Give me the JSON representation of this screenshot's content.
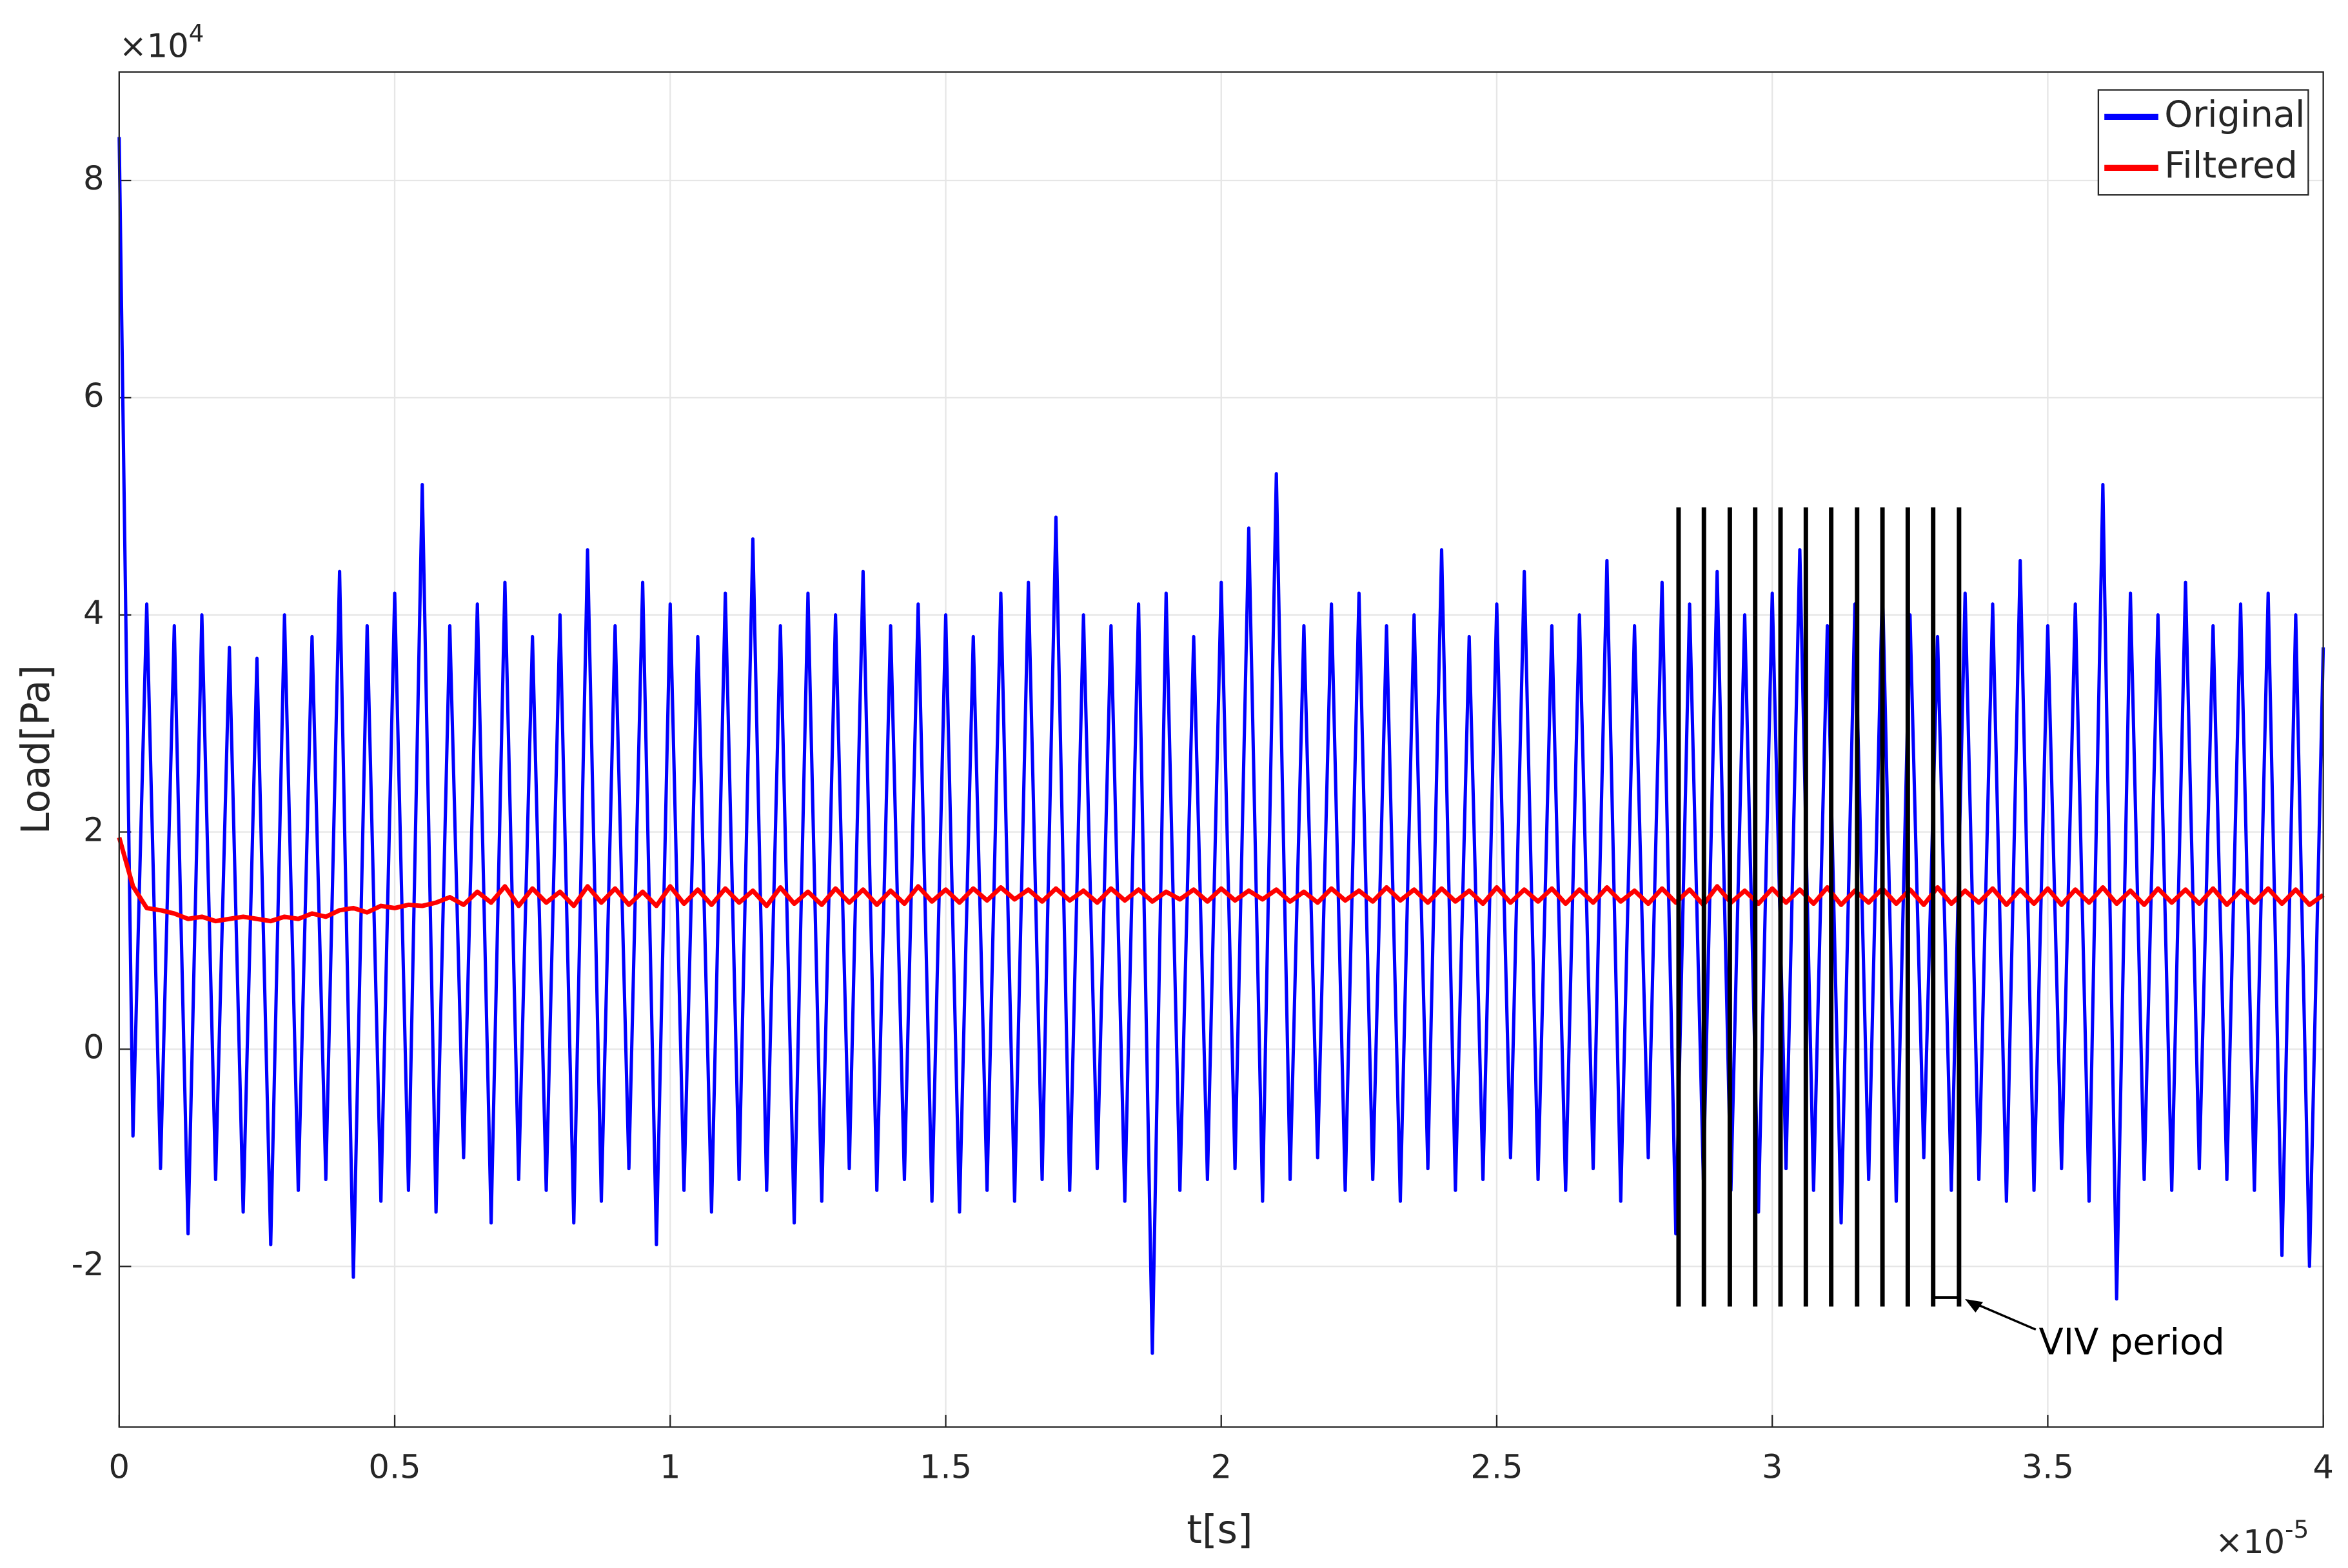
{
  "chart_data": {
    "type": "line",
    "xlabel": "t[s]",
    "ylabel": "Load[Pa]",
    "x_multiplier": "×10",
    "x_exponent": "-5",
    "y_multiplier": "×10",
    "y_exponent": "4",
    "xlim": [
      0,
      4
    ],
    "ylim": [
      -3.48,
      9
    ],
    "xticks": [
      0,
      0.5,
      1,
      1.5,
      2,
      2.5,
      3,
      3.5,
      4
    ],
    "yticks": [
      -2,
      0,
      2,
      4,
      6,
      8
    ],
    "grid": true,
    "legend": "upper right",
    "x": [
      0,
      0.025,
      0.05,
      0.075,
      0.1,
      0.125,
      0.15,
      0.175,
      0.2,
      0.225,
      0.25,
      0.275,
      0.3,
      0.325,
      0.35,
      0.375,
      0.4,
      0.425,
      0.45,
      0.475,
      0.5,
      0.525,
      0.55,
      0.575,
      0.6,
      0.625,
      0.65,
      0.675,
      0.7,
      0.725,
      0.75,
      0.775,
      0.8,
      0.825,
      0.85,
      0.875,
      0.9,
      0.925,
      0.95,
      0.975,
      1,
      1.025,
      1.05,
      1.075,
      1.1,
      1.125,
      1.15,
      1.175,
      1.2,
      1.225,
      1.25,
      1.275,
      1.3,
      1.325,
      1.35,
      1.375,
      1.4,
      1.425,
      1.45,
      1.475,
      1.5,
      1.525,
      1.55,
      1.575,
      1.6,
      1.625,
      1.65,
      1.675,
      1.7,
      1.725,
      1.75,
      1.775,
      1.8,
      1.825,
      1.85,
      1.875,
      1.9,
      1.925,
      1.95,
      1.975,
      2,
      2.025,
      2.05,
      2.075,
      2.1,
      2.125,
      2.15,
      2.175,
      2.2,
      2.225,
      2.25,
      2.275,
      2.3,
      2.325,
      2.35,
      2.375,
      2.4,
      2.425,
      2.45,
      2.475,
      2.5,
      2.525,
      2.55,
      2.575,
      2.6,
      2.625,
      2.65,
      2.675,
      2.7,
      2.725,
      2.75,
      2.775,
      2.8,
      2.825,
      2.85,
      2.875,
      2.9,
      2.925,
      2.95,
      2.975,
      3,
      3.025,
      3.05,
      3.075,
      3.1,
      3.125,
      3.15,
      3.175,
      3.2,
      3.225,
      3.25,
      3.275,
      3.3,
      3.325,
      3.35,
      3.375,
      3.4,
      3.425,
      3.45,
      3.475,
      3.5,
      3.525,
      3.55,
      3.575,
      3.6,
      3.625,
      3.65,
      3.675,
      3.7,
      3.725,
      3.75,
      3.775,
      3.8,
      3.825,
      3.85,
      3.875,
      3.9,
      3.925,
      3.95,
      3.975,
      4
    ],
    "series": [
      {
        "name": "Original",
        "color": "#0000ff",
        "values": [
          8.4,
          -0.8,
          4.1,
          -1.1,
          3.9,
          -1.7,
          4.0,
          -1.2,
          3.7,
          -1.5,
          3.6,
          -1.8,
          4.0,
          -1.3,
          3.8,
          -1.2,
          4.4,
          -2.1,
          3.9,
          -1.4,
          4.2,
          -1.3,
          5.2,
          -1.5,
          3.9,
          -1.0,
          4.1,
          -1.6,
          4.3,
          -1.2,
          3.8,
          -1.3,
          4.0,
          -1.6,
          4.6,
          -1.4,
          3.9,
          -1.1,
          4.3,
          -1.8,
          4.1,
          -1.3,
          3.8,
          -1.5,
          4.2,
          -1.2,
          4.7,
          -1.3,
          3.9,
          -1.6,
          4.2,
          -1.4,
          4.0,
          -1.1,
          4.4,
          -1.3,
          3.9,
          -1.2,
          4.1,
          -1.4,
          4.0,
          -1.5,
          3.8,
          -1.3,
          4.2,
          -1.4,
          4.3,
          -1.2,
          4.9,
          -1.3,
          4.0,
          -1.1,
          3.9,
          -1.4,
          4.1,
          -2.8,
          4.2,
          -1.3,
          3.8,
          -1.2,
          4.3,
          -1.1,
          4.8,
          -1.4,
          5.3,
          -1.2,
          3.9,
          -1.0,
          4.1,
          -1.3,
          4.2,
          -1.2,
          3.9,
          -1.4,
          4.0,
          -1.1,
          4.6,
          -1.3,
          3.8,
          -1.2,
          4.1,
          -1.0,
          4.4,
          -1.2,
          3.9,
          -1.3,
          4.0,
          -1.1,
          4.5,
          -1.4,
          3.9,
          -1.0,
          4.3,
          -1.7,
          4.1,
          -1.2,
          4.4,
          -1.3,
          4.0,
          -1.5,
          4.2,
          -1.1,
          4.6,
          -1.3,
          3.9,
          -1.6,
          4.1,
          -1.2,
          4.3,
          -1.4,
          4.0,
          -1.0,
          3.8,
          -1.3,
          4.2,
          -1.2,
          4.1,
          -1.4,
          4.5,
          -1.3,
          3.9,
          -1.1,
          4.1,
          -1.4,
          5.2,
          -2.3,
          4.2,
          -1.2,
          4.0,
          -1.3,
          4.3,
          -1.1,
          3.9,
          -1.2,
          4.1,
          -1.3,
          4.2,
          -1.9,
          4.0,
          -2.0,
          3.7
        ]
      },
      {
        "name": "Filtered",
        "color": "#ff0000",
        "values": [
          1.95,
          1.5,
          1.3,
          1.28,
          1.25,
          1.2,
          1.22,
          1.18,
          1.2,
          1.22,
          1.2,
          1.18,
          1.22,
          1.2,
          1.25,
          1.22,
          1.28,
          1.3,
          1.26,
          1.32,
          1.3,
          1.33,
          1.32,
          1.35,
          1.4,
          1.33,
          1.45,
          1.35,
          1.5,
          1.32,
          1.48,
          1.35,
          1.45,
          1.32,
          1.5,
          1.35,
          1.48,
          1.33,
          1.45,
          1.32,
          1.5,
          1.34,
          1.47,
          1.33,
          1.48,
          1.35,
          1.46,
          1.32,
          1.49,
          1.34,
          1.45,
          1.33,
          1.48,
          1.35,
          1.47,
          1.33,
          1.46,
          1.34,
          1.5,
          1.36,
          1.47,
          1.35,
          1.48,
          1.37,
          1.49,
          1.38,
          1.47,
          1.36,
          1.48,
          1.37,
          1.46,
          1.35,
          1.48,
          1.37,
          1.47,
          1.36,
          1.45,
          1.38,
          1.47,
          1.36,
          1.48,
          1.37,
          1.46,
          1.38,
          1.47,
          1.36,
          1.45,
          1.35,
          1.48,
          1.37,
          1.46,
          1.36,
          1.49,
          1.37,
          1.47,
          1.35,
          1.48,
          1.36,
          1.46,
          1.34,
          1.49,
          1.35,
          1.47,
          1.36,
          1.48,
          1.34,
          1.47,
          1.35,
          1.49,
          1.36,
          1.46,
          1.34,
          1.48,
          1.35,
          1.47,
          1.33,
          1.5,
          1.35,
          1.46,
          1.34,
          1.48,
          1.35,
          1.47,
          1.34,
          1.49,
          1.33,
          1.46,
          1.35,
          1.48,
          1.34,
          1.47,
          1.33,
          1.49,
          1.34,
          1.46,
          1.35,
          1.48,
          1.33,
          1.47,
          1.34,
          1.48,
          1.33,
          1.47,
          1.35,
          1.49,
          1.34,
          1.46,
          1.33,
          1.48,
          1.35,
          1.47,
          1.34,
          1.48,
          1.33,
          1.46,
          1.35,
          1.48,
          1.34,
          1.47,
          1.33,
          1.42
        ]
      }
    ],
    "markers": {
      "color": "#000000",
      "x": [
        2.83,
        2.876,
        2.923,
        2.969,
        3.015,
        3.061,
        3.107,
        3.154,
        3.2,
        3.246,
        3.292,
        3.339
      ],
      "ymin": -2.37,
      "ymax": 4.99
    },
    "annotation": {
      "text": "VIV period",
      "x": 3.5,
      "y": -2.72
    }
  }
}
